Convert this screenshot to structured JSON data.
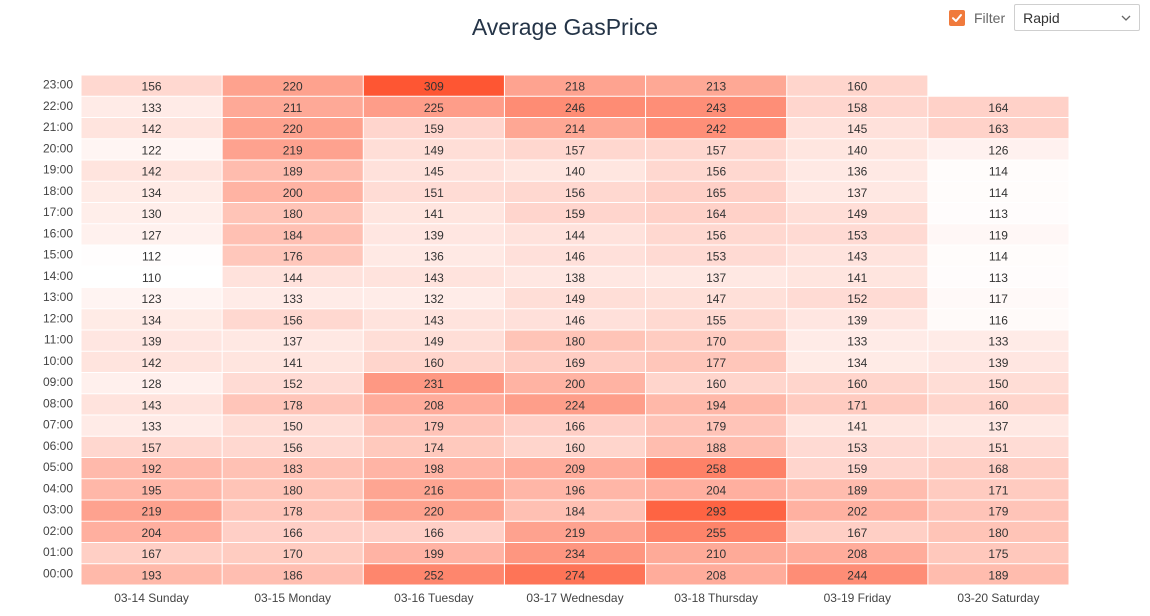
{
  "title": "Average GasPrice",
  "filter": {
    "label": "Filter",
    "checked": true,
    "selected": "Rapid"
  },
  "colors": {
    "low": "#ffffff",
    "high": "#fe5633",
    "accent": "#f07a3c"
  },
  "chart_data": {
    "type": "heatmap",
    "title": "Average GasPrice",
    "x_categories": [
      "03-14 Sunday",
      "03-15 Monday",
      "03-16 Tuesday",
      "03-17 Wednesday",
      "03-18 Thursday",
      "03-19 Friday",
      "03-20 Saturday"
    ],
    "y_categories": [
      "00:00",
      "01:00",
      "02:00",
      "03:00",
      "04:00",
      "05:00",
      "06:00",
      "07:00",
      "08:00",
      "09:00",
      "10:00",
      "11:00",
      "12:00",
      "13:00",
      "14:00",
      "15:00",
      "16:00",
      "17:00",
      "18:00",
      "19:00",
      "20:00",
      "21:00",
      "22:00",
      "23:00"
    ],
    "value_range": [
      110,
      309
    ],
    "values": [
      [
        193,
        186,
        252,
        274,
        208,
        244,
        189
      ],
      [
        167,
        170,
        199,
        234,
        210,
        208,
        175
      ],
      [
        204,
        166,
        166,
        219,
        255,
        167,
        180
      ],
      [
        219,
        178,
        220,
        184,
        293,
        202,
        179
      ],
      [
        195,
        180,
        216,
        196,
        204,
        189,
        171
      ],
      [
        192,
        183,
        198,
        209,
        258,
        159,
        168
      ],
      [
        157,
        156,
        174,
        160,
        188,
        153,
        151
      ],
      [
        133,
        150,
        179,
        166,
        179,
        141,
        137
      ],
      [
        143,
        178,
        208,
        224,
        194,
        171,
        160
      ],
      [
        128,
        152,
        231,
        200,
        160,
        160,
        150
      ],
      [
        142,
        141,
        160,
        169,
        177,
        134,
        139
      ],
      [
        139,
        137,
        149,
        180,
        170,
        133,
        133
      ],
      [
        134,
        156,
        143,
        146,
        155,
        139,
        116
      ],
      [
        123,
        133,
        132,
        149,
        147,
        152,
        117
      ],
      [
        110,
        144,
        143,
        138,
        137,
        141,
        113
      ],
      [
        112,
        176,
        136,
        146,
        153,
        143,
        114
      ],
      [
        127,
        184,
        139,
        144,
        156,
        153,
        119
      ],
      [
        130,
        180,
        141,
        159,
        164,
        149,
        113
      ],
      [
        134,
        200,
        151,
        156,
        165,
        137,
        114
      ],
      [
        142,
        189,
        145,
        140,
        156,
        136,
        114
      ],
      [
        122,
        219,
        149,
        157,
        157,
        140,
        126
      ],
      [
        142,
        220,
        159,
        214,
        242,
        145,
        163
      ],
      [
        133,
        211,
        225,
        246,
        243,
        158,
        164
      ],
      [
        156,
        220,
        309,
        218,
        213,
        160,
        null
      ]
    ]
  }
}
